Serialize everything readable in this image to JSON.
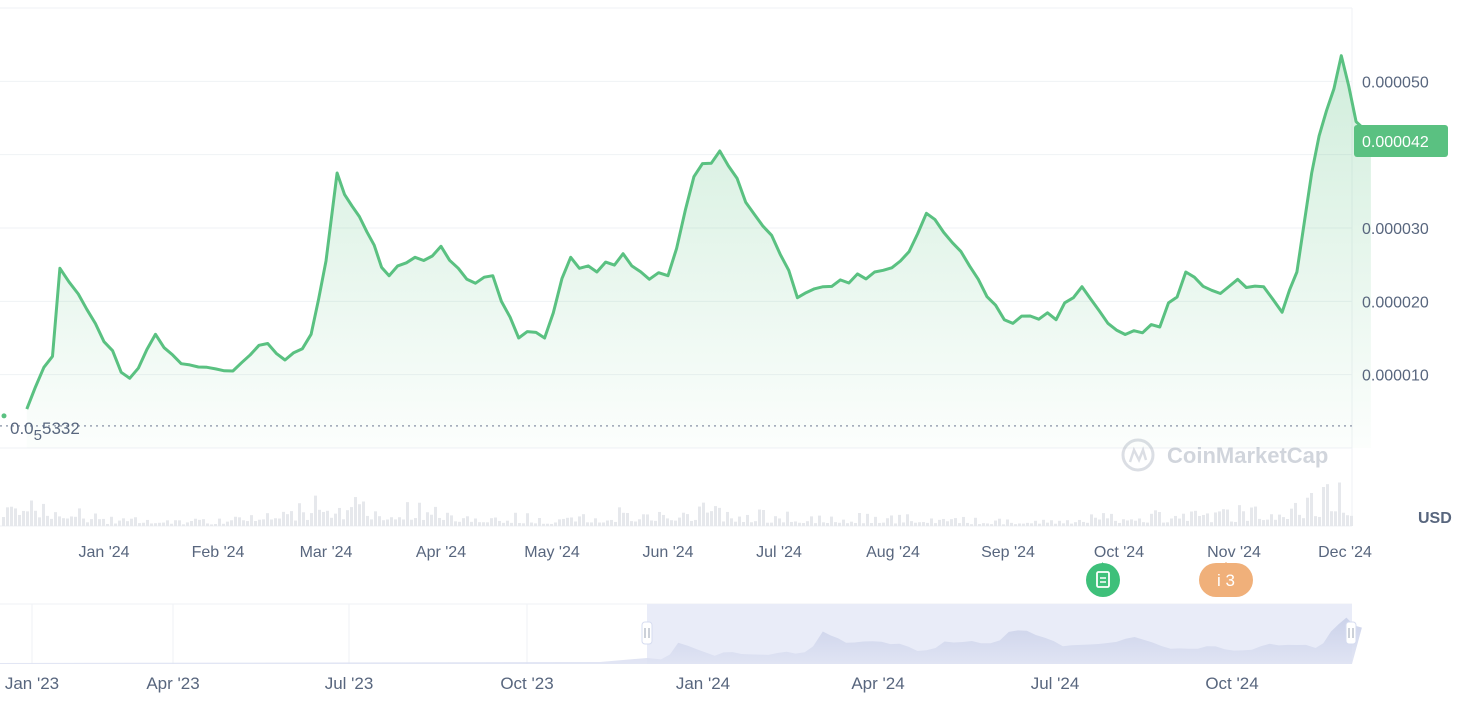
{
  "chart_data": {
    "type": "area",
    "unit_label": "USD",
    "watermark": "CoinMarketCap",
    "x_ticks": [
      "Jan '24",
      "Feb '24",
      "Mar '24",
      "Apr '24",
      "May '24",
      "Jun '24",
      "Jul '24",
      "Aug '24",
      "Sep '24",
      "Oct '24",
      "Nov '24",
      "Dec '24"
    ],
    "y_ticks": [
      "0.000010",
      "0.000020",
      "0.000030",
      "0.000050"
    ],
    "y_tick_values": [
      1e-05,
      2e-05,
      3e-05,
      4e-05,
      5e-05
    ],
    "ylim": [
      0.0,
      6e-05
    ],
    "start_marker": {
      "prefix": "0.0",
      "subscript": "5",
      "digits": "5332",
      "value": 5.332e-06
    },
    "current_price": {
      "label": "0.000042",
      "value": 4.2e-05
    },
    "price_series": {
      "x": [
        "2023-12-11",
        "2023-12-18",
        "2023-12-20",
        "2023-12-25",
        "2024-01-01",
        "2024-01-08",
        "2024-01-15",
        "2024-01-22",
        "2024-01-29",
        "2024-02-05",
        "2024-02-12",
        "2024-02-19",
        "2024-02-26",
        "2024-03-01",
        "2024-03-04",
        "2024-03-08",
        "2024-03-12",
        "2024-03-18",
        "2024-03-25",
        "2024-04-01",
        "2024-04-08",
        "2024-04-15",
        "2024-04-22",
        "2024-04-29",
        "2024-05-06",
        "2024-05-13",
        "2024-05-20",
        "2024-05-27",
        "2024-06-01",
        "2024-06-08",
        "2024-06-15",
        "2024-06-22",
        "2024-06-29",
        "2024-07-06",
        "2024-07-13",
        "2024-07-20",
        "2024-07-27",
        "2024-08-03",
        "2024-08-10",
        "2024-08-17",
        "2024-08-24",
        "2024-08-31",
        "2024-09-07",
        "2024-09-14",
        "2024-09-21",
        "2024-09-28",
        "2024-10-05",
        "2024-10-12",
        "2024-10-19",
        "2024-10-26",
        "2024-11-02",
        "2024-11-09",
        "2024-11-14",
        "2024-11-18",
        "2024-11-22",
        "2024-11-26",
        "2024-11-30",
        "2024-12-04",
        "2024-12-08"
      ],
      "y": [
        5.3e-06,
        1.25e-05,
        2.45e-05,
        2.1e-05,
        1.45e-05,
        9.5e-06,
        1.55e-05,
        1.15e-05,
        1.1e-05,
        1.05e-05,
        1.4e-05,
        1.2e-05,
        1.55e-05,
        2.55e-05,
        3.75e-05,
        3.3e-05,
        2.95e-05,
        2.35e-05,
        2.6e-05,
        2.75e-05,
        2.3e-05,
        2.35e-05,
        1.5e-05,
        1.5e-05,
        2.6e-05,
        2.4e-05,
        2.65e-05,
        2.3e-05,
        2.35e-05,
        3.7e-05,
        4.05e-05,
        3.35e-05,
        2.9e-05,
        2.05e-05,
        2.2e-05,
        2.25e-05,
        2.4e-05,
        2.55e-05,
        3.2e-05,
        2.8e-05,
        2.3e-05,
        1.75e-05,
        1.8e-05,
        1.75e-05,
        2.2e-05,
        1.7e-05,
        1.6e-05,
        1.65e-05,
        2.4e-05,
        2.15e-05,
        2.3e-05,
        2.2e-05,
        1.85e-05,
        2.4e-05,
        3.75e-05,
        4.6e-05,
        5.35e-05,
        4.45e-05,
        4.2e-05
      ]
    },
    "volume_series": {
      "x": [
        "Dec '23",
        "Jan '24",
        "Feb '24",
        "Mar '24",
        "Apr '24",
        "May '24",
        "Jun '24",
        "Jul '24",
        "Aug '24",
        "Sep '24",
        "Oct '24",
        "Nov '24",
        "Dec '24"
      ],
      "y": [
        0.6,
        0.2,
        0.15,
        0.7,
        0.45,
        0.2,
        0.55,
        0.3,
        0.25,
        0.15,
        0.3,
        0.4,
        1.0
      ]
    },
    "navigator": {
      "x_ticks": [
        "Jan '23",
        "Apr '23",
        "Jul '23",
        "Oct '23",
        "Jan '24",
        "Apr '24",
        "Jul '24",
        "Oct '24"
      ],
      "selected_range": [
        "Dec '23",
        "Dec '24"
      ]
    },
    "events": [
      {
        "icon": "document-icon",
        "label": "",
        "color": "#3ec07a"
      },
      {
        "icon": "info-icon",
        "label": "i 3",
        "color": "#f0b07a"
      }
    ],
    "colors": {
      "line": "#5ac181",
      "area": "#e5f5eb",
      "badge": "#5ac181",
      "grid": "#eff2f5",
      "nav_selection": "#e9ecf8",
      "nav_fill": "#d6dcf0"
    }
  }
}
